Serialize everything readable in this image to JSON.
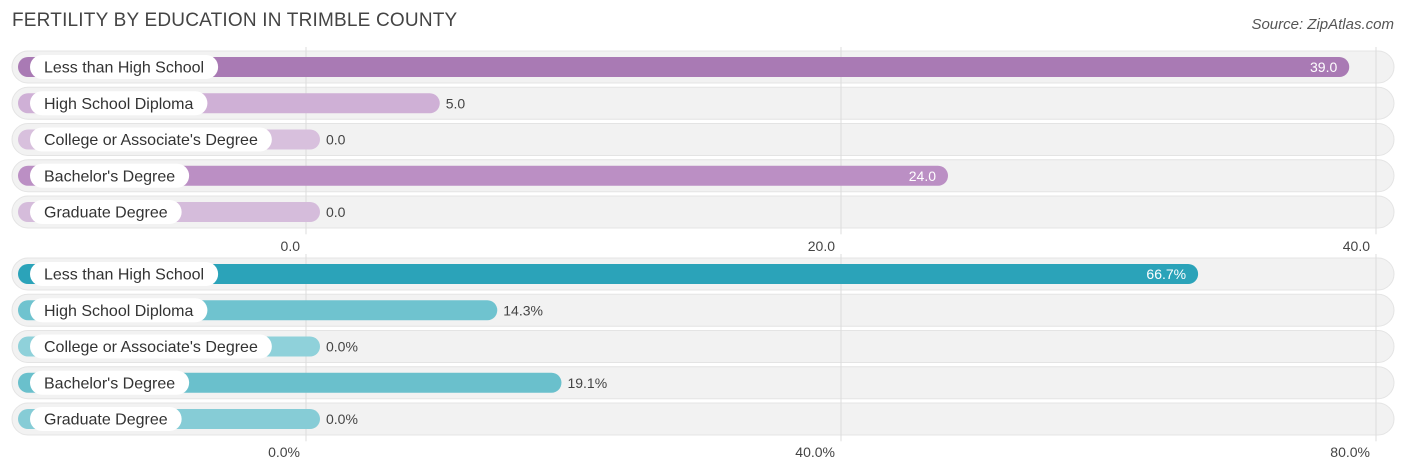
{
  "title": "FERTILITY BY EDUCATION IN TRIMBLE COUNTY",
  "source": "Source: ZipAtlas.com",
  "chart_data": [
    {
      "type": "bar",
      "orientation": "horizontal",
      "categories": [
        "Less than High School",
        "High School Diploma",
        "College or Associate's Degree",
        "Bachelor's Degree",
        "Graduate Degree"
      ],
      "values": [
        39.0,
        5.0,
        0.0,
        24.0,
        0.0
      ],
      "value_labels": [
        "39.0",
        "5.0",
        "0.0",
        "24.0",
        "0.0"
      ],
      "ticks": [
        "0.0",
        "20.0",
        "40.0"
      ],
      "tick_values": [
        0,
        20,
        40
      ],
      "xlim": [
        0,
        40
      ],
      "colors": [
        "#a97ab4",
        "#cfb0d6",
        "#d8c0dd",
        "#bb8fc4",
        "#d5bcdb"
      ],
      "value_inside_color": "#ffffff",
      "value_outside_color": "#444444"
    },
    {
      "type": "bar",
      "orientation": "horizontal",
      "categories": [
        "Less than High School",
        "High School Diploma",
        "College or Associate's Degree",
        "Bachelor's Degree",
        "Graduate Degree"
      ],
      "values": [
        66.7,
        14.3,
        0.0,
        19.1,
        0.0
      ],
      "value_labels": [
        "66.7%",
        "14.3%",
        "0.0%",
        "19.1%",
        "0.0%"
      ],
      "ticks": [
        "0.0%",
        "40.0%",
        "80.0%"
      ],
      "tick_values": [
        0,
        40,
        80
      ],
      "xlim": [
        0,
        80
      ],
      "colors": [
        "#2ba3b9",
        "#6fc3cf",
        "#8fd1da",
        "#6ac0cc",
        "#86ccd6"
      ],
      "value_inside_color": "#ffffff",
      "value_outside_color": "#444444"
    }
  ]
}
